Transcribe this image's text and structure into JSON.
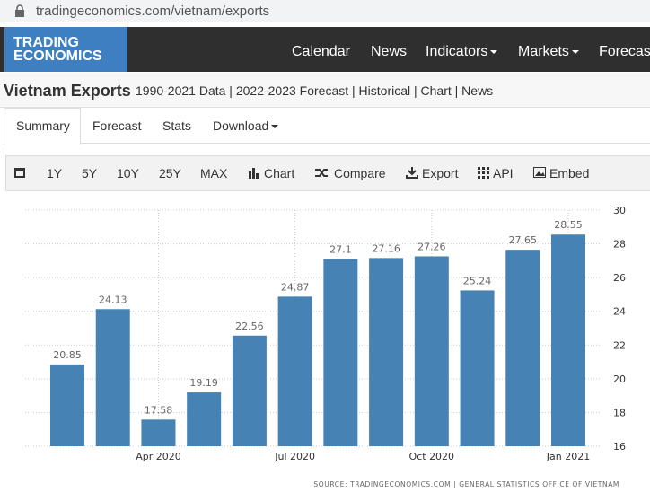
{
  "browser": {
    "url": "tradingeconomics.com/vietnam/exports"
  },
  "nav": {
    "logo": [
      "TRADING",
      "ECONOMICS"
    ],
    "items": [
      "Calendar",
      "News",
      "Indicators",
      "Markets",
      "Forecasts"
    ]
  },
  "header": {
    "title": "Vietnam Exports",
    "links": "1990-2021 Data | 2022-2023 Forecast | Historical | Chart | News"
  },
  "tabs": [
    "Summary",
    "Forecast",
    "Stats",
    "Download"
  ],
  "toolbar": [
    "1Y",
    "5Y",
    "10Y",
    "25Y",
    "MAX",
    "Chart",
    "Compare",
    "Export",
    "API",
    "Embed"
  ],
  "chart_data": {
    "type": "bar",
    "categories": [
      null,
      null,
      "Apr 2020",
      null,
      null,
      "Jul 2020",
      null,
      null,
      "Oct 2020",
      null,
      null,
      "Jan 2021"
    ],
    "values": [
      20.85,
      24.13,
      17.58,
      19.19,
      22.56,
      24.87,
      27.1,
      27.16,
      27.26,
      25.24,
      27.65,
      28.55
    ],
    "color": "#4682b4",
    "ylim": [
      16,
      30
    ],
    "yticks": [
      16,
      18,
      20,
      22,
      24,
      26,
      28,
      30
    ],
    "grid": true,
    "source": "SOURCE: TRADINGECONOMICS.COM | GENERAL STATISTICS OFFICE OF VIETNAM"
  }
}
